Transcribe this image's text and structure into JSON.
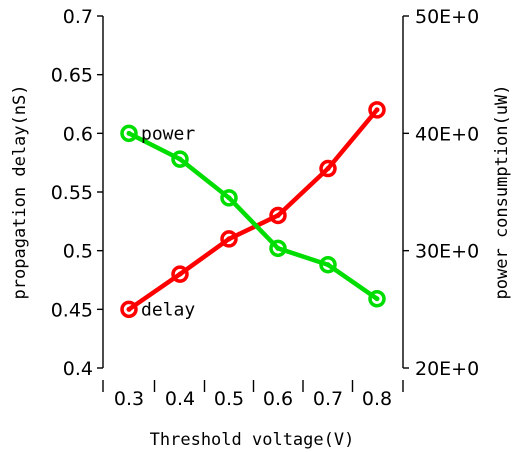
{
  "chart_data": {
    "type": "line",
    "title": "",
    "xlabel": "Threshold voltage(V)",
    "ylabel_left": "propagation delay(nS)",
    "ylabel_right": "power consumption(uW)",
    "x": [
      0.3,
      0.4,
      0.5,
      0.6,
      0.7,
      0.8
    ],
    "x_tick_labels": [
      "0.3",
      "0.4",
      "0.5",
      "0.6",
      "0.7",
      "0.8"
    ],
    "ylim_left": [
      0.4,
      0.7
    ],
    "y_left_ticks": [
      "0.4",
      "0.45",
      "0.5",
      "0.55",
      "0.6",
      "0.65",
      "0.7"
    ],
    "ylim_right": [
      20,
      50
    ],
    "y_right_ticks": [
      "20E+0",
      "30E+0",
      "40E+0",
      "50E+0"
    ],
    "grid": false,
    "series": [
      {
        "name": "delay",
        "axis": "left",
        "color": "#ff0000",
        "values": [
          0.45,
          0.48,
          0.51,
          0.53,
          0.57,
          0.62
        ]
      },
      {
        "name": "power",
        "axis": "right",
        "color": "#00dd00",
        "values": [
          40.0,
          37.8,
          34.5,
          30.2,
          28.8,
          25.9
        ]
      }
    ]
  }
}
